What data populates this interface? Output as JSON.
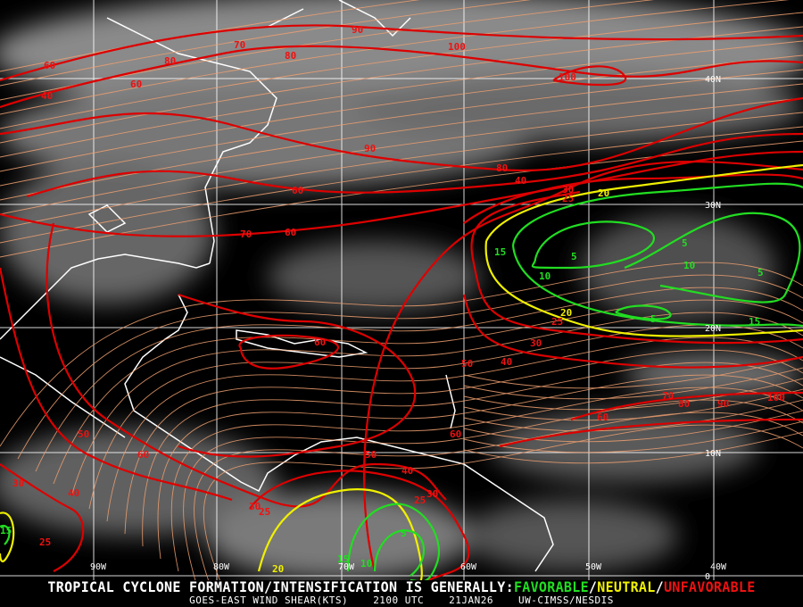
{
  "product": "GOES-EAST WIND SHEAR(KTS)",
  "time": "2100 UTC",
  "date": "21JAN26",
  "credit": "UW-CIMSS/NESDIS",
  "legend": {
    "prefix": "TROPICAL CYCLONE FORMATION/INTENSIFICATION IS GENERALLY:",
    "favorable": "FAVORABLE",
    "sep1": "/",
    "neutral": "NEUTRAL",
    "sep2": "/",
    "unfavorable": "UNFAVORABLE"
  },
  "colors": {
    "favorable": "#22dd22",
    "neutral": "#f0f000",
    "unfavorable": "#dd0000",
    "streamlines": "#f0a070",
    "coastline": "#ffffff",
    "grid": "#ffffff"
  },
  "grid": {
    "longitudes": [
      "90W",
      "80W",
      "70W",
      "60W",
      "50W",
      "40W"
    ],
    "latitudes": [
      "40N",
      "30N",
      "20N",
      "10N",
      "0"
    ]
  },
  "contour_labels": [
    {
      "value": "90",
      "class": "unfavorable"
    },
    {
      "value": "100",
      "class": "unfavorable"
    },
    {
      "value": "100",
      "class": "unfavorable"
    },
    {
      "value": "70",
      "class": "unfavorable"
    },
    {
      "value": "80",
      "class": "unfavorable"
    },
    {
      "value": "80",
      "class": "unfavorable"
    },
    {
      "value": "60",
      "class": "unfavorable"
    },
    {
      "value": "60",
      "class": "unfavorable"
    },
    {
      "value": "40",
      "class": "unfavorable"
    },
    {
      "value": "90",
      "class": "unfavorable"
    },
    {
      "value": "80",
      "class": "unfavorable"
    },
    {
      "value": "40",
      "class": "unfavorable"
    },
    {
      "value": "60",
      "class": "unfavorable"
    },
    {
      "value": "70",
      "class": "unfavorable"
    },
    {
      "value": "60",
      "class": "unfavorable"
    },
    {
      "value": "30",
      "class": "unfavorable"
    },
    {
      "value": "25",
      "class": "unfavorable"
    },
    {
      "value": "20",
      "class": "neutral"
    },
    {
      "value": "15",
      "class": "favorable"
    },
    {
      "value": "10",
      "class": "favorable"
    },
    {
      "value": "5",
      "class": "favorable"
    },
    {
      "value": "5",
      "class": "favorable"
    },
    {
      "value": "10",
      "class": "favorable"
    },
    {
      "value": "5",
      "class": "favorable"
    },
    {
      "value": "5",
      "class": "favorable"
    },
    {
      "value": "15",
      "class": "favorable"
    },
    {
      "value": "20",
      "class": "neutral"
    },
    {
      "value": "25",
      "class": "unfavorable"
    },
    {
      "value": "30",
      "class": "unfavorable"
    },
    {
      "value": "40",
      "class": "unfavorable"
    },
    {
      "value": "50",
      "class": "unfavorable"
    },
    {
      "value": "60",
      "class": "unfavorable"
    },
    {
      "value": "70",
      "class": "unfavorable"
    },
    {
      "value": "80",
      "class": "unfavorable"
    },
    {
      "value": "90",
      "class": "unfavorable"
    },
    {
      "value": "100",
      "class": "unfavorable"
    },
    {
      "value": "60",
      "class": "unfavorable"
    },
    {
      "value": "60",
      "class": "unfavorable"
    },
    {
      "value": "50",
      "class": "unfavorable"
    },
    {
      "value": "60",
      "class": "unfavorable"
    },
    {
      "value": "50",
      "class": "unfavorable"
    },
    {
      "value": "40",
      "class": "unfavorable"
    },
    {
      "value": "30",
      "class": "unfavorable"
    },
    {
      "value": "40",
      "class": "unfavorable"
    },
    {
      "value": "30",
      "class": "unfavorable"
    },
    {
      "value": "25",
      "class": "unfavorable"
    },
    {
      "value": "30",
      "class": "unfavorable"
    },
    {
      "value": "25",
      "class": "unfavorable"
    },
    {
      "value": "20",
      "class": "neutral"
    },
    {
      "value": "15",
      "class": "favorable"
    },
    {
      "value": "25",
      "class": "unfavorable"
    },
    {
      "value": "15",
      "class": "favorable"
    },
    {
      "value": "10",
      "class": "favorable"
    },
    {
      "value": "5",
      "class": "favorable"
    }
  ]
}
